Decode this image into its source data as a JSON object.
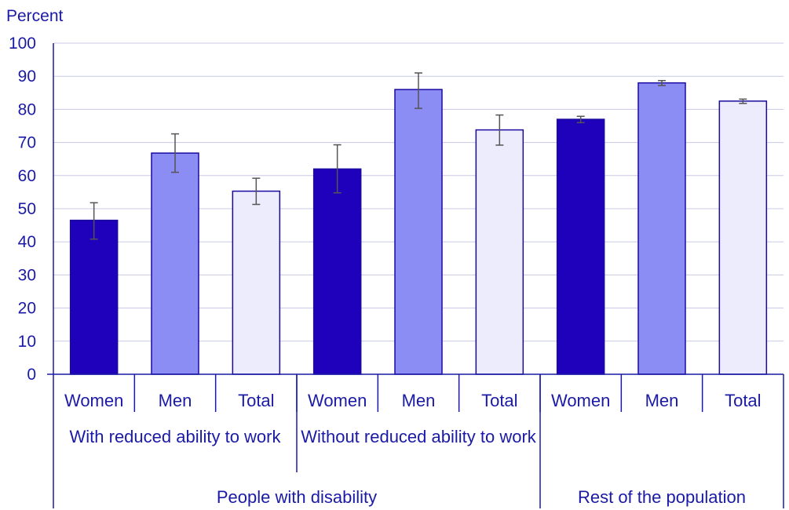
{
  "chart_data": {
    "type": "bar",
    "ylabel": "Percent",
    "ylim": [
      0,
      100
    ],
    "yticks": [
      0,
      10,
      20,
      30,
      40,
      50,
      60,
      70,
      80,
      90,
      100
    ],
    "grid": true,
    "colors": {
      "Women": "#1f00bb",
      "Men": "#8c8cf5",
      "Total": "#ececfc"
    },
    "categories": [
      "Women",
      "Men",
      "Total",
      "Women",
      "Men",
      "Total",
      "Women",
      "Men",
      "Total"
    ],
    "values": [
      46.5,
      66.8,
      55.3,
      62.0,
      86.0,
      73.8,
      77.0,
      88.0,
      82.5
    ],
    "error_low": [
      40.8,
      61.0,
      51.3,
      54.8,
      80.3,
      69.2,
      76.0,
      87.2,
      81.8
    ],
    "error_high": [
      51.8,
      72.6,
      59.2,
      69.3,
      91.0,
      78.3,
      77.9,
      88.7,
      83.1
    ],
    "groups_level1": [
      {
        "label": "With reduced ability to work",
        "start": 0,
        "span": 3
      },
      {
        "label": "Without reduced ability to work",
        "start": 3,
        "span": 3
      }
    ],
    "groups_level2": [
      {
        "label": "People with disability",
        "start": 0,
        "span": 6
      },
      {
        "label": "Rest of the population",
        "start": 6,
        "span": 3
      }
    ]
  }
}
